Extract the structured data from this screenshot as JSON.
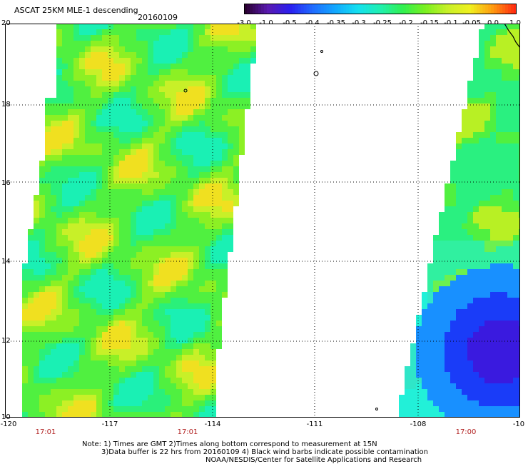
{
  "header": {
    "title": "ASCAT 25KM MLE-1 descending",
    "date": "20160109"
  },
  "colorbar": {
    "tick_labels": [
      "-3.0",
      "-1.0",
      "-0.5",
      "-0.4",
      "-0.35",
      "-0.3",
      "-0.25",
      "-0.2",
      "-0.15",
      "-0.1",
      "-0.05",
      "0.0",
      "1.0"
    ],
    "colors": [
      "#2a0030",
      "#5a1ab0",
      "#2a1ff0",
      "#1f6cff",
      "#12a8ff",
      "#14e0f0",
      "#20f0b0",
      "#30f050",
      "#7af020",
      "#c8f028",
      "#f0f020",
      "#ff9a10",
      "#ff2a10"
    ]
  },
  "map": {
    "lat_labels": [
      "20",
      "18",
      "16",
      "14",
      "12",
      "10"
    ],
    "lon_labels": [
      "-120",
      "-117",
      "-114",
      "-111",
      "-108",
      "-10"
    ],
    "time_labels": [
      "17:01",
      "17:01",
      "17:00"
    ]
  },
  "notes": {
    "line1": "Note: 1) Times are GMT 2)Times along bottom correspond to measurement at 15N",
    "line2": "3)Data buffer is 22 hrs from 20160109 4) Black wind barbs indicate possible contamination",
    "line3": "NOAA/NESDIS/Center for Satellite Applications and Research"
  }
}
